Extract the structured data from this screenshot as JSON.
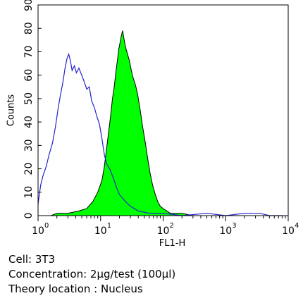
{
  "chart_data": {
    "type": "area",
    "xlabel": "FL1-H",
    "ylabel": "Counts",
    "xscale": "log",
    "xlim": [
      1,
      10000
    ],
    "ylim": [
      0,
      90
    ],
    "x_ticks": [
      {
        "base": "10",
        "exp": "0"
      },
      {
        "base": "10",
        "exp": "1"
      },
      {
        "base": "10",
        "exp": "2"
      },
      {
        "base": "10",
        "exp": "3"
      },
      {
        "base": "10",
        "exp": "4"
      }
    ],
    "y_ticks": [
      "0",
      "10",
      "20",
      "30",
      "40",
      "50",
      "60",
      "70",
      "80",
      "90"
    ],
    "grid": false,
    "colors": {
      "control": "#2222cc",
      "sample_fill": "#00ff00",
      "sample_stroke": "#000000"
    },
    "series": [
      {
        "style": "outline",
        "x": [
          1,
          1.1,
          1.2,
          1.35,
          1.5,
          1.7,
          1.9,
          2.1,
          2.3,
          2.5,
          2.7,
          2.9,
          3.1,
          3.3,
          3.5,
          3.8,
          4.1,
          4.5,
          5,
          5.5,
          6,
          6.6,
          7.2,
          8,
          8.8,
          9.6,
          10.5,
          11.5,
          12.5,
          14,
          16,
          18,
          20,
          25,
          30,
          40,
          60,
          100,
          200,
          500,
          1000,
          2000,
          3500,
          5000,
          8000
        ],
        "y": [
          5,
          13,
          17,
          21,
          26,
          31,
          38,
          46,
          52,
          57,
          63,
          67,
          69,
          66,
          62,
          64,
          61,
          63,
          60,
          57,
          54,
          55,
          49,
          46,
          42,
          39,
          33,
          26,
          22,
          20,
          16,
          12,
          9,
          6,
          4,
          2,
          1,
          1,
          0,
          1,
          0,
          1,
          1,
          0,
          0
        ]
      },
      {
        "style": "filled",
        "x": [
          1.6,
          2,
          3,
          4.5,
          6,
          7.5,
          9,
          10.5,
          11.5,
          12.5,
          13.5,
          14.5,
          15.5,
          16.5,
          17.5,
          18.5,
          19.5,
          20.5,
          21.5,
          22.5,
          23.5,
          25,
          27,
          29,
          31,
          33,
          36,
          39,
          43,
          47,
          52,
          57,
          62,
          68,
          75,
          82,
          90,
          100,
          115,
          130,
          150,
          200,
          300
        ],
        "y": [
          0,
          1,
          1,
          2,
          3,
          6,
          10,
          15,
          21,
          29,
          36,
          43,
          50,
          55,
          61,
          66,
          71,
          74,
          77,
          79,
          76,
          72,
          69,
          66,
          62,
          59,
          56,
          52,
          45,
          38,
          31,
          24,
          18,
          13,
          9,
          6,
          4,
          3,
          2,
          1,
          1,
          1,
          0
        ]
      }
    ]
  },
  "caption": {
    "cell": "Cell: 3T3",
    "concentration": "Concentration: 2μg/test (100μl)",
    "location": "Theory location : Nucleus"
  }
}
